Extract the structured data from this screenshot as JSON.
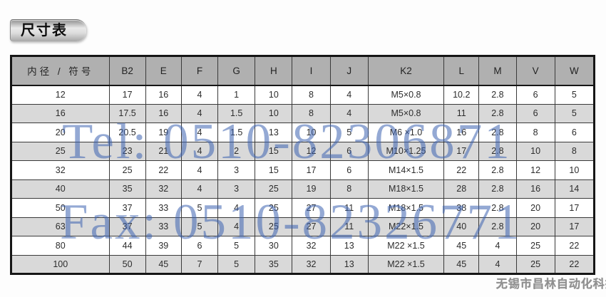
{
  "title": "尺寸表",
  "table": {
    "columns": [
      "内径 / 符号",
      "B2",
      "E",
      "F",
      "G",
      "H",
      "I",
      "J",
      "K2",
      "L",
      "M",
      "V",
      "W"
    ],
    "rows": [
      [
        "12",
        "17",
        "16",
        "4",
        "1",
        "10",
        "8",
        "4",
        "M5×0.8",
        "10.2",
        "2.8",
        "6",
        "5"
      ],
      [
        "16",
        "17.5",
        "16",
        "4",
        "1.5",
        "10",
        "8",
        "4",
        "M5×0.8",
        "11",
        "2.8",
        "6",
        "5"
      ],
      [
        "20",
        "20.5",
        "19",
        "4",
        "1.5",
        "13",
        "10",
        "5",
        "M6 ×1.0",
        "16",
        "2.8",
        "8",
        "6"
      ],
      [
        "25",
        "23",
        "21",
        "4",
        "2",
        "15",
        "12",
        "6",
        "M10×1.25",
        "17",
        "2.8",
        "10",
        "8"
      ],
      [
        "32",
        "25",
        "22",
        "4",
        "3",
        "15",
        "17",
        "6",
        "M14×1.5",
        "22",
        "2.8",
        "12",
        "10"
      ],
      [
        "40",
        "35",
        "32",
        "4",
        "3",
        "25",
        "19",
        "8",
        "M18×1.5",
        "28",
        "2.8",
        "16",
        "14"
      ],
      [
        "50",
        "37",
        "33",
        "5",
        "4",
        "25",
        "27",
        "11",
        "M18×1.5",
        "38",
        "2.8",
        "20",
        "17"
      ],
      [
        "63",
        "37",
        "33",
        "5",
        "4",
        "25",
        "27",
        "11",
        "M22×1.5",
        "40",
        "2.8",
        "20",
        "17"
      ],
      [
        "80",
        "44",
        "39",
        "6",
        "5",
        "30",
        "32",
        "13",
        "M22 ×1.5",
        "45",
        "4",
        "25",
        "22"
      ],
      [
        "100",
        "50",
        "45",
        "7",
        "5",
        "35",
        "32",
        "13",
        "M22 ×1.5",
        "45",
        "4",
        "25",
        "22"
      ]
    ]
  },
  "watermarks": {
    "tel": "Tel: 0510-82306871",
    "fax": "Fax: 0510-82326771",
    "company": "无锡市昌林自动化科技"
  },
  "colors": {
    "header_bg": "#b0b0b0",
    "row_alt_bg": "#d9d9d9",
    "table_border": "#161616",
    "watermark_blue": "#3d63b0",
    "company_gray": "#8f8f8f"
  }
}
